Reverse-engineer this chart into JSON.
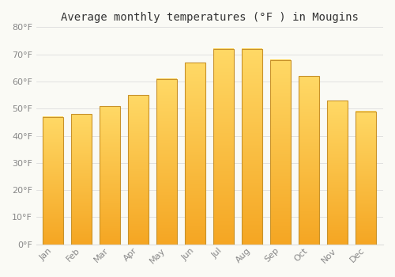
{
  "title": "Average monthly temperatures (°F ) in Mougins",
  "months": [
    "Jan",
    "Feb",
    "Mar",
    "Apr",
    "May",
    "Jun",
    "Jul",
    "Aug",
    "Sep",
    "Oct",
    "Nov",
    "Dec"
  ],
  "values": [
    47,
    48,
    51,
    55,
    61,
    67,
    72,
    72,
    68,
    62,
    53,
    49
  ],
  "bar_color_bottom": "#F5A623",
  "bar_color_top": "#FFD966",
  "bar_edge_color": "#C8922A",
  "background_color": "#FAFAF5",
  "grid_color": "#DDDDDD",
  "tick_label_color": "#888888",
  "title_color": "#333333",
  "ylim": [
    0,
    80
  ],
  "yticks": [
    0,
    10,
    20,
    30,
    40,
    50,
    60,
    70,
    80
  ],
  "ytick_labels": [
    "0°F",
    "10°F",
    "20°F",
    "30°F",
    "40°F",
    "50°F",
    "60°F",
    "70°F",
    "80°F"
  ],
  "title_fontsize": 10,
  "tick_fontsize": 8
}
